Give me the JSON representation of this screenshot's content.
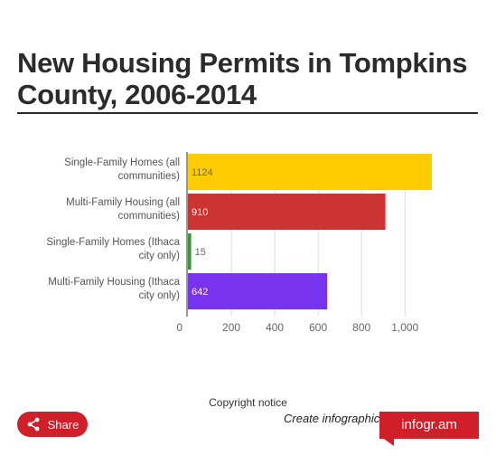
{
  "title": "New Housing Permits in Tompkins County, 2006-2014",
  "chart_data": {
    "type": "bar",
    "orientation": "horizontal",
    "title": "New Housing Permits in Tompkins County, 2006-2014",
    "categories": [
      "Single-Family Homes (all communities)",
      "Multi-Family Housing (all communities)",
      "Single-Family Homes (Ithaca city only)",
      "Multi-Family Housing (Ithaca city only)"
    ],
    "category_lines": [
      [
        "Single-Family Homes (all",
        "communities)"
      ],
      [
        "Multi-Family Housing (all",
        "communities)"
      ],
      [
        "Single-Family Homes (Ithaca",
        "city only)"
      ],
      [
        "Multi-Family Housing (Ithaca",
        "city only)"
      ]
    ],
    "values": [
      1124,
      910,
      15,
      642
    ],
    "value_labels": [
      "1124",
      "910",
      "15",
      "642"
    ],
    "colors": [
      "#ffcc00",
      "#cc3333",
      "#339933",
      "#7733ee"
    ],
    "xlim": [
      0,
      1100
    ],
    "xticks": [
      0,
      200,
      400,
      600,
      800,
      1000
    ],
    "xtick_labels": [
      "0",
      "200",
      "400",
      "600",
      "800",
      "1,000"
    ],
    "grid": true,
    "legend": "none"
  },
  "footer": {
    "copyright": "Copyright notice",
    "share_label": "Share",
    "create_label": "Create infographics",
    "brand": "infogr.am"
  }
}
